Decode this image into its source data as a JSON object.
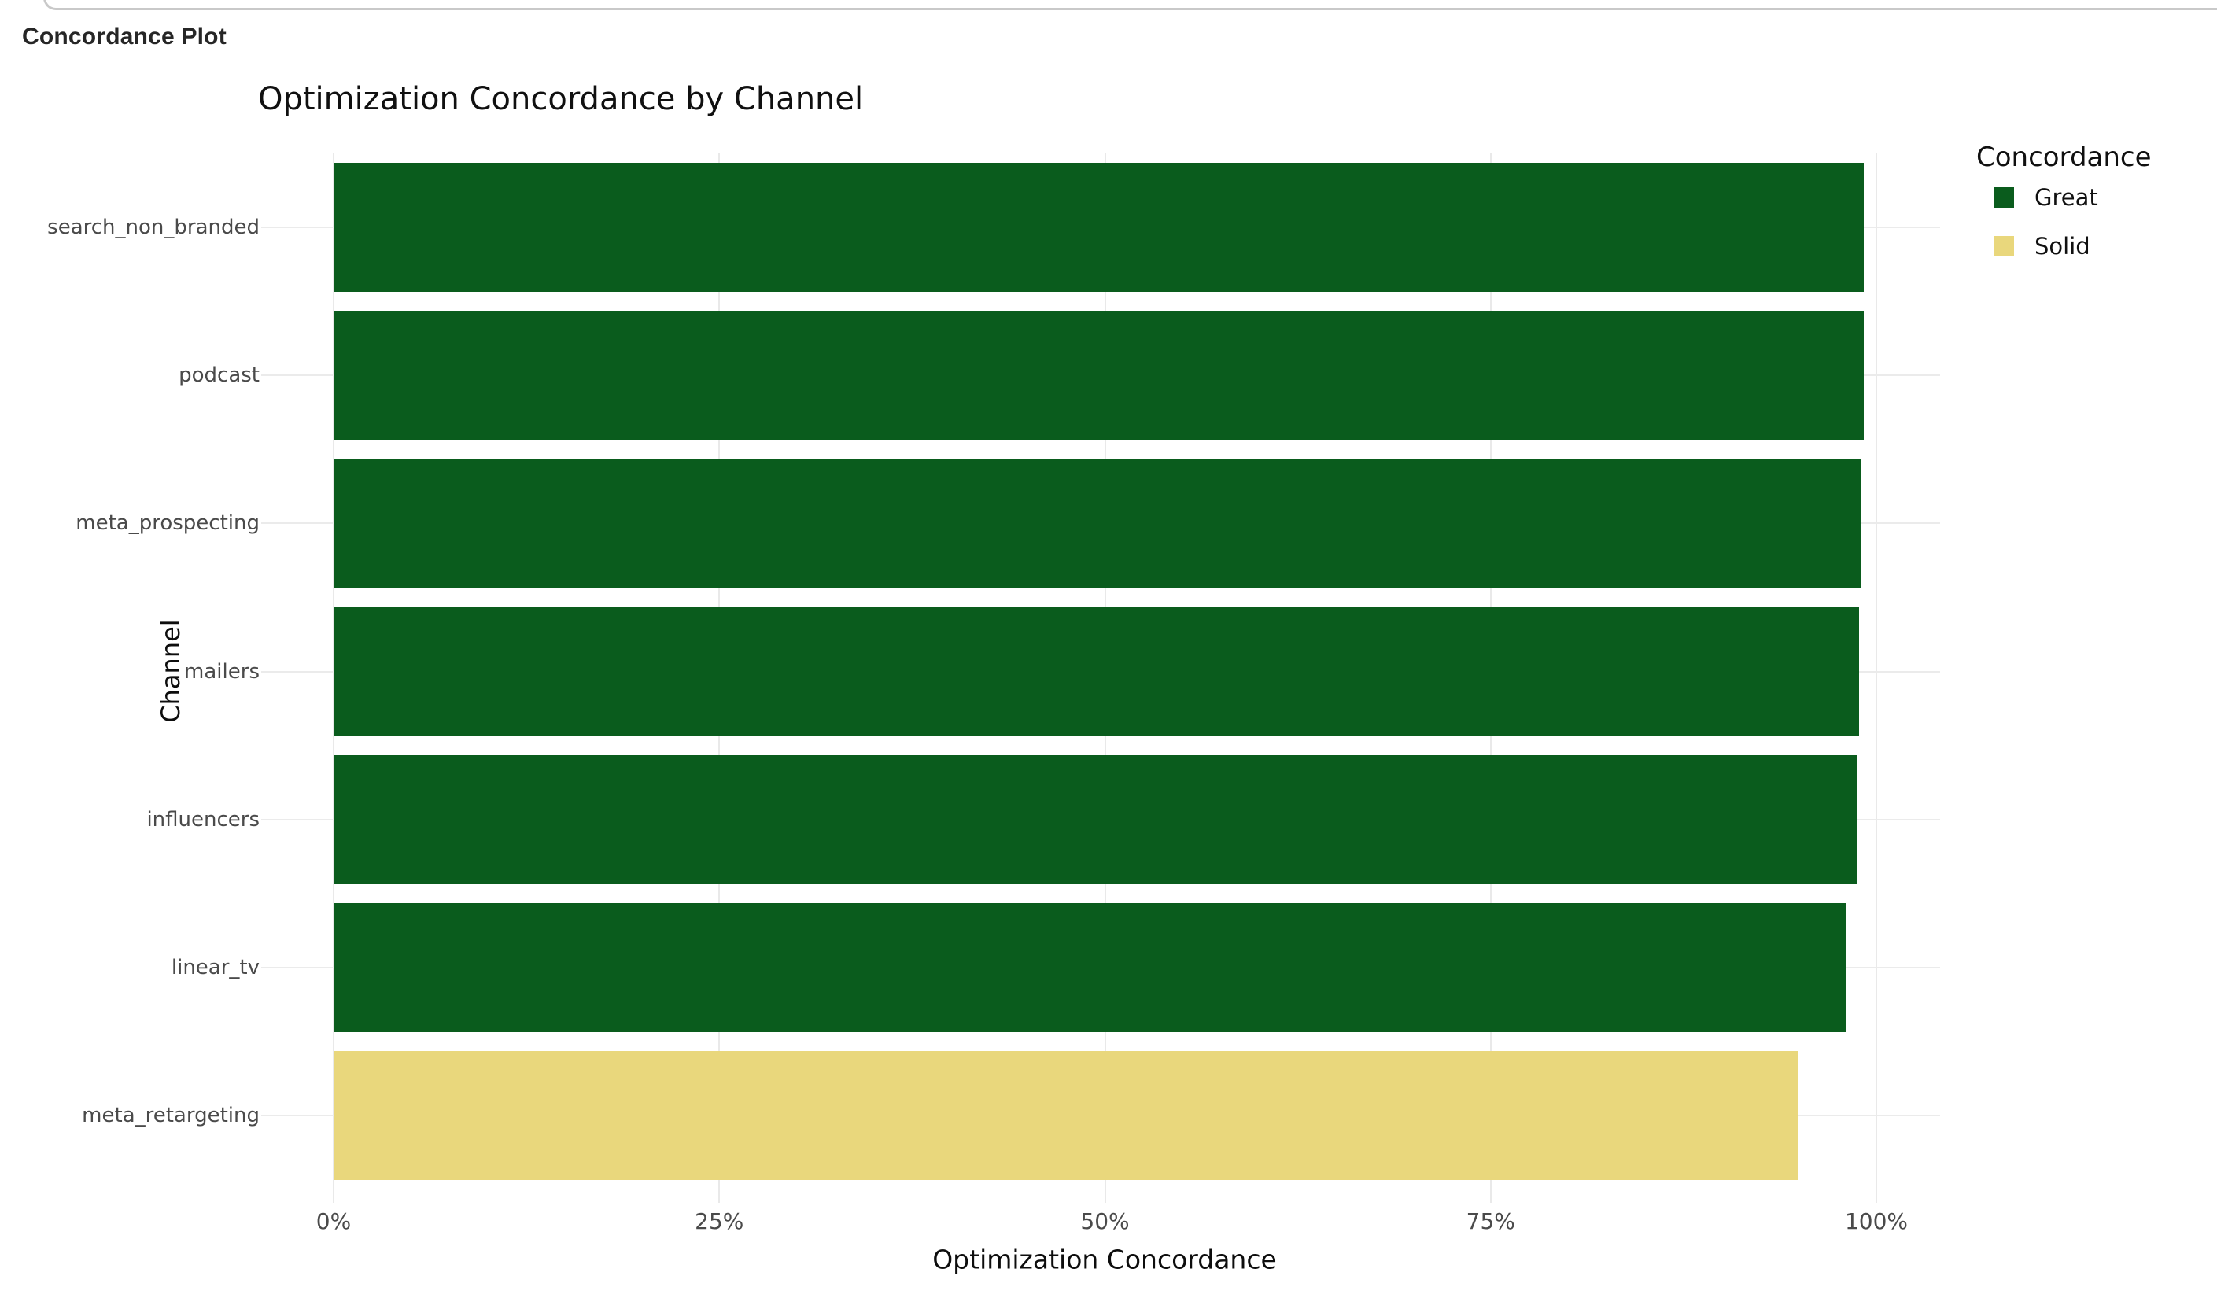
{
  "page": {
    "header": "Concordance Plot"
  },
  "chart_data": {
    "type": "bar",
    "orientation": "horizontal",
    "title": "Optimization Concordance by Channel",
    "xlabel": "Optimization Concordance",
    "ylabel": "Channel",
    "categories": [
      "search_non_branded",
      "podcast",
      "meta_prospecting",
      "mailers",
      "influencers",
      "linear_tv",
      "meta_retargeting"
    ],
    "values_pct": [
      99.2,
      99.2,
      99.0,
      98.9,
      98.7,
      98.0,
      94.9
    ],
    "series_by_point": [
      "Great",
      "Great",
      "Great",
      "Great",
      "Great",
      "Great",
      "Solid"
    ],
    "xlim": [
      0,
      100
    ],
    "xtick_labels": [
      "0%",
      "25%",
      "50%",
      "75%",
      "100%"
    ],
    "xtick_values": [
      0,
      25,
      50,
      75,
      100
    ],
    "grid": true,
    "legend": {
      "title": "Concordance",
      "position": "top-right",
      "entries": [
        {
          "label": "Great",
          "color": "#0a5c1d"
        },
        {
          "label": "Solid",
          "color": "#e9d77c"
        }
      ]
    },
    "colors": {
      "Great": "#0a5c1d",
      "Solid": "#e9d77c"
    },
    "gridline_color": "#e9e9e9"
  }
}
